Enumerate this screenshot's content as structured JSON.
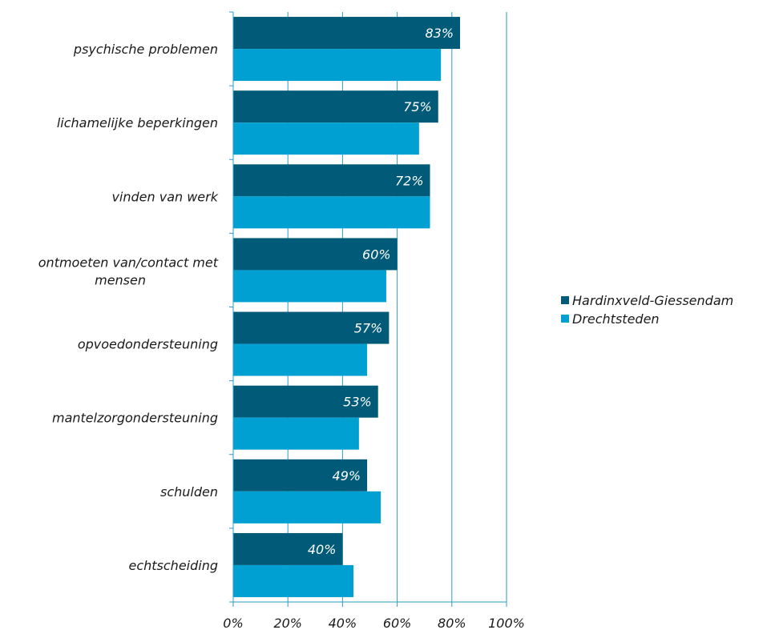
{
  "chart_data": {
    "type": "bar",
    "orientation": "horizontal",
    "categories": [
      [
        "psychische problemen"
      ],
      [
        "lichamelijke beperkingen"
      ],
      [
        "vinden van werk"
      ],
      [
        "ontmoeten van/contact met",
        "mensen"
      ],
      [
        "opvoedondersteuning"
      ],
      [
        "mantelzorgondersteuning"
      ],
      [
        "schulden"
      ],
      [
        "echtscheiding"
      ]
    ],
    "series": [
      {
        "name": "Hardinxveld-Giessendam",
        "color": "#005a78",
        "values": [
          83,
          75,
          72,
          60,
          57,
          53,
          49,
          40
        ],
        "labels": [
          "83%",
          "75%",
          "72%",
          "60%",
          "57%",
          "53%",
          "49%",
          "40%"
        ]
      },
      {
        "name": "Drechtsteden",
        "color": "#00a0d2",
        "values": [
          76,
          68,
          72,
          56,
          49,
          46,
          54,
          44
        ]
      }
    ],
    "x_ticks": [
      "0%",
      "20%",
      "40%",
      "60%",
      "80%",
      "100%"
    ],
    "xlim": [
      0,
      100
    ],
    "grid": true,
    "gridline_color": "#2b9cc4",
    "legend_position": "right"
  }
}
